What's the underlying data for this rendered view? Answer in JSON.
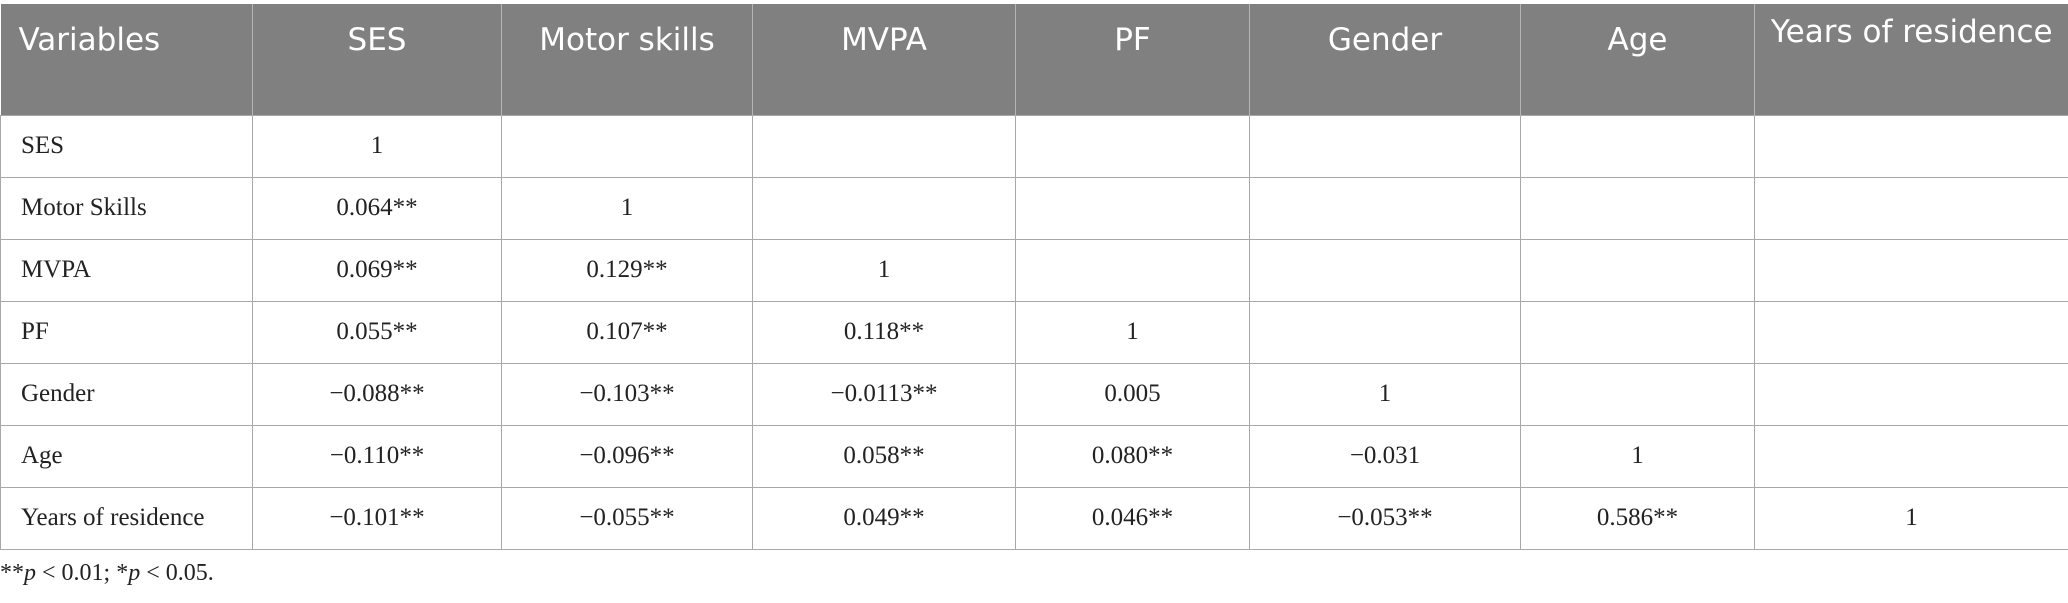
{
  "table": {
    "headers": [
      "Variables",
      "SES",
      "Motor skills",
      "MVPA",
      "PF",
      "Gender",
      "Age",
      "Years of residence"
    ],
    "rows": [
      [
        "SES",
        "1",
        "",
        "",
        "",
        "",
        "",
        ""
      ],
      [
        "Motor Skills",
        "0.064**",
        "1",
        "",
        "",
        "",
        "",
        ""
      ],
      [
        "MVPA",
        "0.069**",
        "0.129**",
        "1",
        "",
        "",
        "",
        ""
      ],
      [
        "PF",
        "0.055**",
        "0.107**",
        "0.118**",
        "1",
        "",
        "",
        ""
      ],
      [
        "Gender",
        "−0.088**",
        "−0.103**",
        "−0.0113**",
        "0.005",
        "1",
        "",
        ""
      ],
      [
        "Age",
        "−0.110**",
        "−0.096**",
        "0.058**",
        "0.080**",
        "−0.031",
        "1",
        ""
      ],
      [
        "Years of residence",
        "−0.101**",
        "−0.055**",
        "0.049**",
        "0.046**",
        "−0.053**",
        "0.586**",
        "1"
      ]
    ]
  },
  "footnote": {
    "stars_double": "**",
    "p_symbol_1": "p",
    "text_1": " < 0.01; ",
    "star_single": "*",
    "p_symbol_2": "p",
    "text_2": " < 0.05."
  }
}
